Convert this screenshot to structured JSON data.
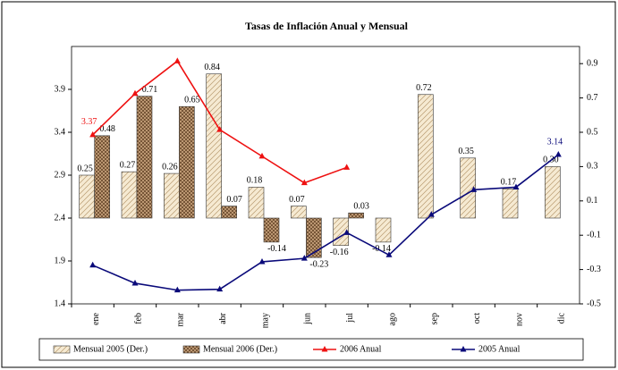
{
  "chart_data": {
    "type": "bar-line",
    "title": "Tasas de Inflación Anual y Mensual",
    "categories": [
      "ene",
      "feb",
      "mar",
      "abr",
      "may",
      "jun",
      "jul",
      "ago",
      "sep",
      "oct",
      "nov",
      "dic"
    ],
    "ylim": [
      1.4,
      4.4
    ],
    "yticks": [
      1.4,
      1.9,
      2.4,
      2.9,
      3.4,
      3.9
    ],
    "y2lim": [
      -0.5,
      1.0
    ],
    "y2ticks": [
      -0.5,
      -0.3,
      -0.1,
      0.1,
      0.3,
      0.5,
      0.7,
      0.9
    ],
    "grid": false,
    "legend": "bottom",
    "series": [
      {
        "name": "Mensual 2005 (Der.)",
        "kind": "bar",
        "axis": "y2",
        "color": "#f3e4c8",
        "values": [
          0.25,
          0.27,
          0.26,
          0.84,
          0.18,
          0.07,
          -0.16,
          -0.14,
          0.72,
          0.35,
          0.17,
          0.3
        ],
        "value_labels": [
          "0.25",
          "0.27",
          "0.26",
          "0.84",
          "0.18",
          "0.07",
          "-0.16",
          "-0.14",
          "0.72",
          "0.35",
          "0.17",
          "0.30"
        ]
      },
      {
        "name": "Mensual 2006 (Der.)",
        "kind": "bar",
        "axis": "y2",
        "color": "#b08a68",
        "values": [
          0.48,
          0.71,
          0.65,
          0.07,
          -0.14,
          -0.23,
          0.03,
          null,
          null,
          null,
          null,
          null
        ],
        "value_labels": [
          "0.48",
          "0.71",
          "0.65",
          "0.07",
          "-0.14",
          "-0.23",
          "0.03",
          null,
          null,
          null,
          null,
          null
        ]
      },
      {
        "name": "2006 Anual",
        "kind": "line",
        "color": "#ee1111",
        "values": [
          3.37,
          3.85,
          4.23,
          3.43,
          3.12,
          2.81,
          2.99,
          null,
          null,
          null,
          null,
          null
        ],
        "value_labels": [
          "3.37",
          null,
          null,
          null,
          null,
          null,
          null,
          null,
          null,
          null,
          null,
          null
        ]
      },
      {
        "name": "2005 Anual",
        "kind": "line",
        "color": "#0a0a7a",
        "values": [
          1.85,
          1.64,
          1.56,
          1.57,
          1.89,
          1.93,
          2.23,
          1.97,
          2.44,
          2.73,
          2.76,
          3.14
        ],
        "value_labels": [
          null,
          null,
          null,
          null,
          null,
          null,
          null,
          null,
          null,
          null,
          null,
          "3.14"
        ]
      }
    ]
  }
}
